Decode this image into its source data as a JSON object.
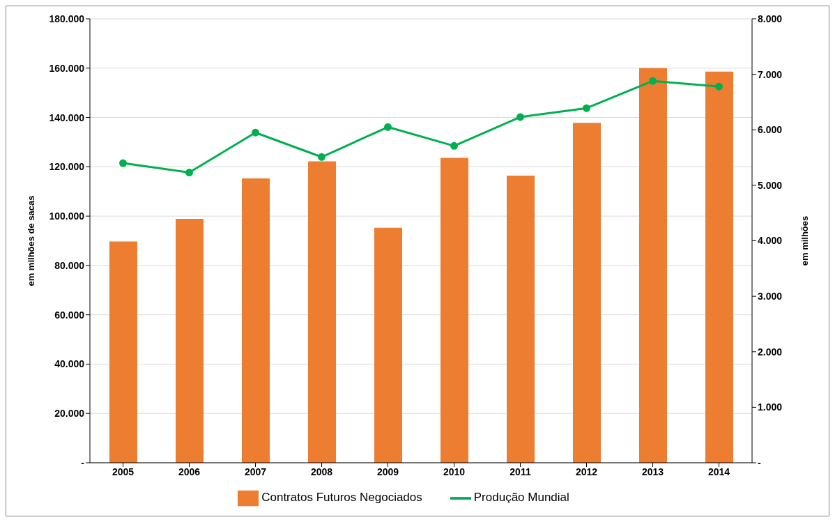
{
  "chart_data": {
    "type": "bar",
    "categories": [
      "2005",
      "2006",
      "2007",
      "2008",
      "2009",
      "2010",
      "2011",
      "2012",
      "2013",
      "2014"
    ],
    "series": [
      {
        "name": "Contratos Futuros Negociados",
        "color": "#ed7d31",
        "values": [
          89700,
          98900,
          115300,
          122200,
          95300,
          123600,
          116400,
          137800,
          160000,
          158600
        ]
      },
      {
        "name": "Produção Mundial",
        "type": "line",
        "axis": "y2",
        "color": "#00b050",
        "values": [
          5400,
          5230,
          5950,
          5510,
          6050,
          5710,
          6230,
          6390,
          6880,
          6780
        ]
      }
    ],
    "ylabel": "em milhões de sacas",
    "y2label": "em milhões",
    "ylim": [
      0,
      180000
    ],
    "yticks": [
      {
        "value": 0,
        "label": "-"
      },
      {
        "value": 20000,
        "label": "20.000"
      },
      {
        "value": 40000,
        "label": "40.000"
      },
      {
        "value": 60000,
        "label": "60.000"
      },
      {
        "value": 80000,
        "label": "80.000"
      },
      {
        "value": 100000,
        "label": "100.000"
      },
      {
        "value": 120000,
        "label": "120.000"
      },
      {
        "value": 140000,
        "label": "140.000"
      },
      {
        "value": 160000,
        "label": "160.000"
      },
      {
        "value": 180000,
        "label": "180.000"
      }
    ],
    "y2lim": [
      0,
      8000
    ],
    "y2ticks": [
      {
        "value": 0,
        "label": "-"
      },
      {
        "value": 1000,
        "label": "1.000"
      },
      {
        "value": 2000,
        "label": "2.000"
      },
      {
        "value": 3000,
        "label": "3.000"
      },
      {
        "value": 4000,
        "label": "4.000"
      },
      {
        "value": 5000,
        "label": "5.000"
      },
      {
        "value": 6000,
        "label": "6.000"
      },
      {
        "value": 7000,
        "label": "7.000"
      },
      {
        "value": 8000,
        "label": "8.000"
      }
    ],
    "grid": "y",
    "legend": "bottom",
    "marker": "circle",
    "line_style": "solid"
  }
}
